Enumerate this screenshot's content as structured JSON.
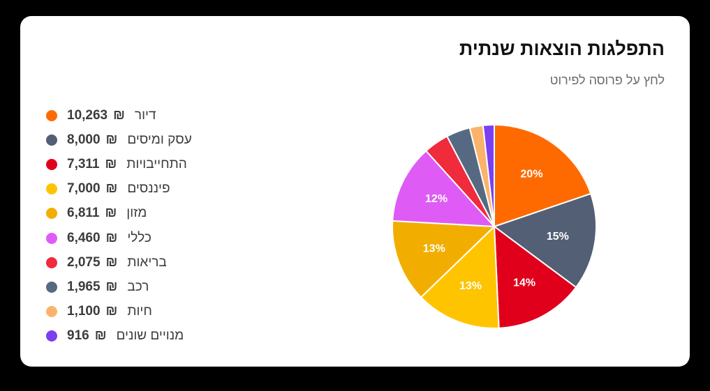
{
  "card": {
    "title": "התפלגות הוצאות שנתית",
    "subtitle": "לחץ על פרוסה לפירוט"
  },
  "currency_symbol": "₪",
  "chart_data": {
    "type": "pie",
    "title": "התפלגות הוצאות שנתית",
    "subtitle": "לחץ על פרוסה לפירוט",
    "categories": [
      "דיור",
      "עסק ומיסים",
      "התחייבויות",
      "פיננסים",
      "מזון",
      "כללי",
      "בריאות",
      "רכב",
      "חיות",
      "מנויים שונים"
    ],
    "values": [
      10263,
      8000,
      7311,
      7000,
      6811,
      6460,
      2075,
      1965,
      1100,
      916
    ],
    "display_values": [
      "10,263",
      "8,000",
      "7,311",
      "7,000",
      "6,811",
      "6,460",
      "2,075",
      "1,965",
      "1,100",
      "916"
    ],
    "percent_labels": [
      "20%",
      "15%",
      "14%",
      "13%",
      "13%",
      "12%",
      "",
      "",
      "",
      ""
    ],
    "colors": [
      "#ff6a00",
      "#535f75",
      "#e0001b",
      "#ffc400",
      "#f2ae00",
      "#de5cf5",
      "#ef2b3c",
      "#566982",
      "#fbb36b",
      "#7b3ff2"
    ],
    "legend_position": "left",
    "start_angle_deg": 90,
    "direction": "clockwise"
  }
}
